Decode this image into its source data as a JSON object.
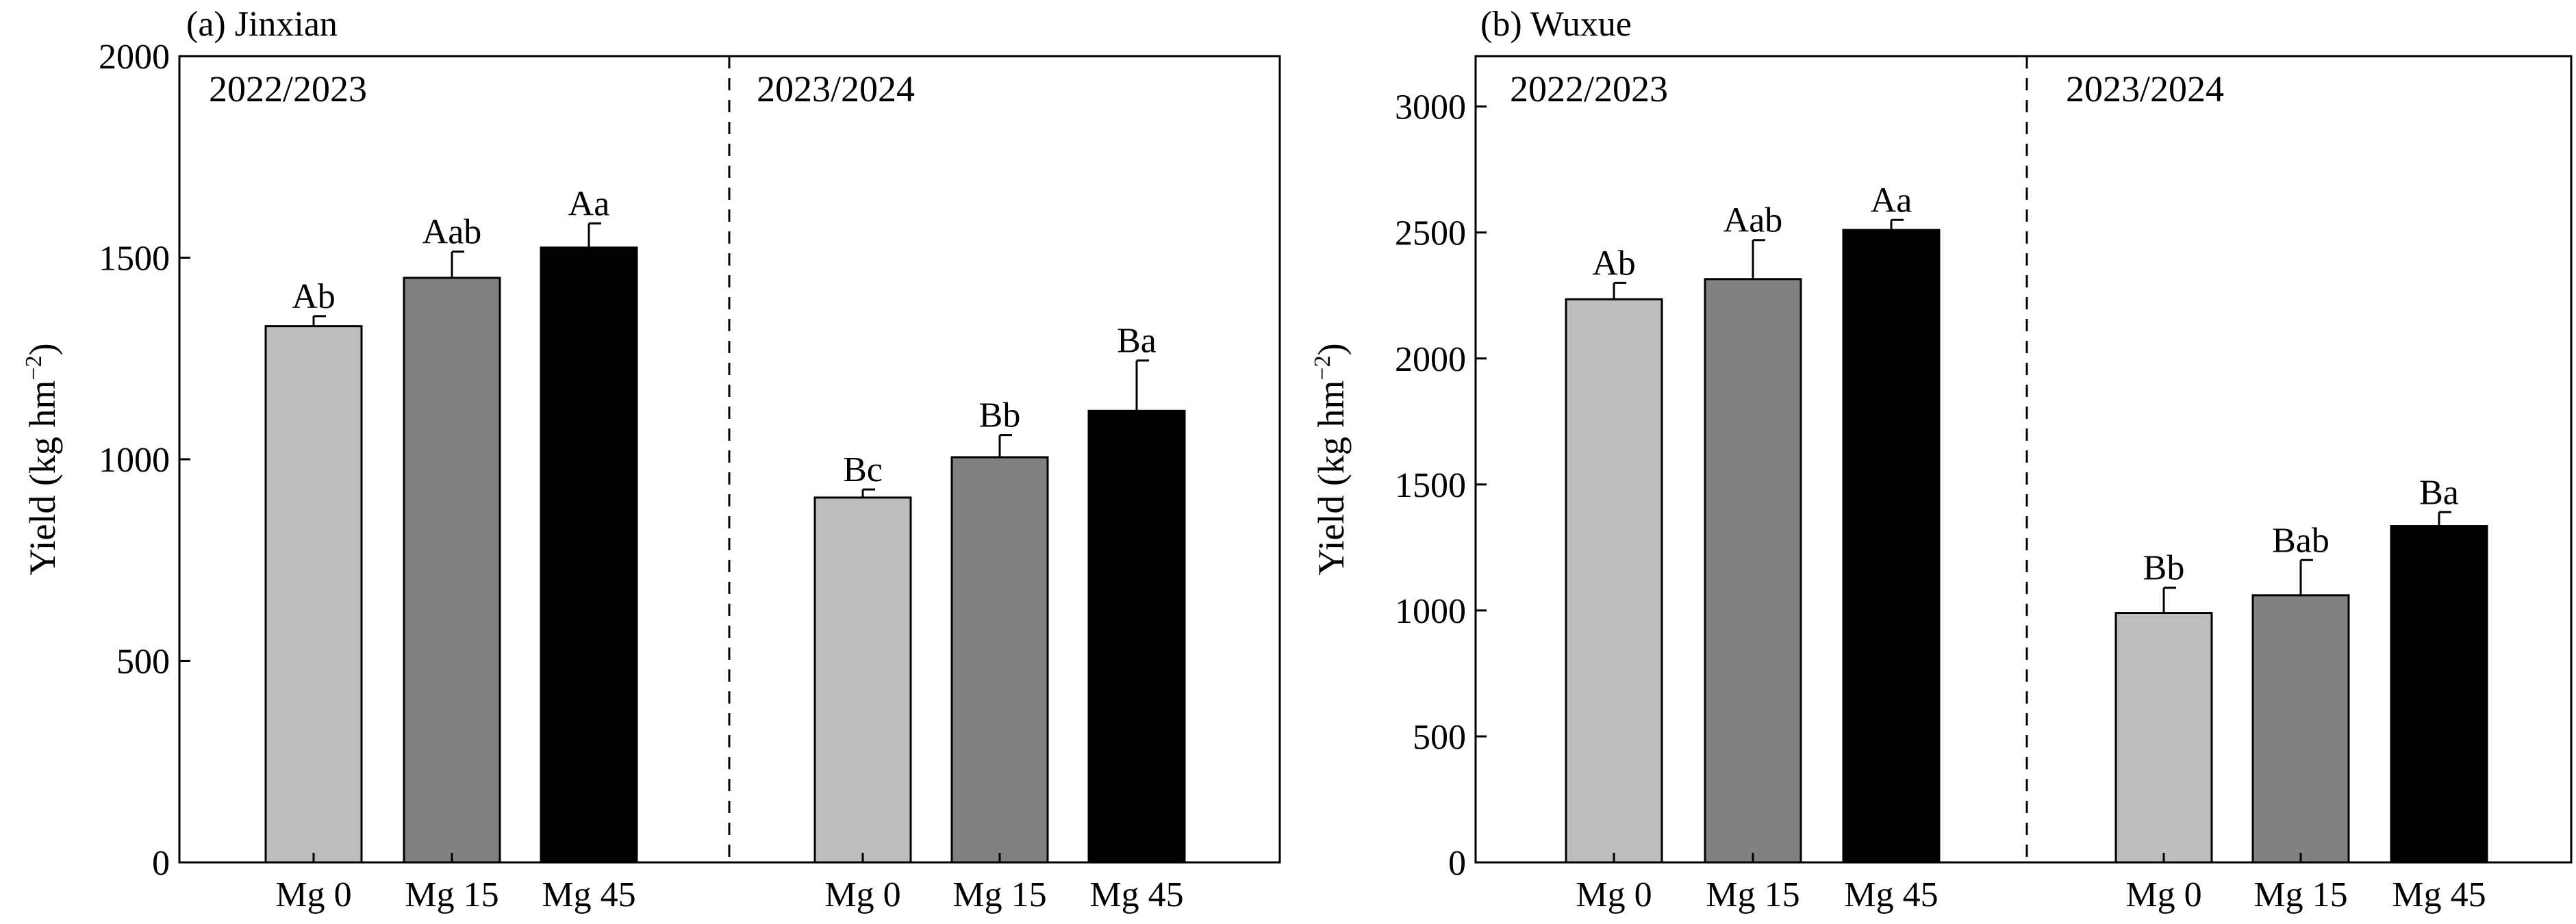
{
  "chart_data": [
    {
      "type": "bar",
      "title": "(a) Jinxian",
      "ylabel": "Yield (kg hm",
      "ylabel_sup": "−2",
      "ylabel_close": ")",
      "ylim": [
        0,
        2000
      ],
      "yticks": [
        0,
        500,
        1000,
        1500,
        2000
      ],
      "categories": [
        "Mg 0",
        "Mg 15",
        "Mg 45"
      ],
      "bar_colors": [
        "#bebcbf",
        "#828083",
        "#000000"
      ],
      "groups": [
        {
          "label": "2022/2023",
          "values": [
            1330,
            1450,
            1525
          ],
          "errors": [
            25,
            65,
            60
          ],
          "letters": [
            "Ab",
            "Aab",
            "Aa"
          ]
        },
        {
          "label": "2023/2024",
          "values": [
            905,
            1005,
            1120
          ],
          "errors": [
            20,
            55,
            125
          ],
          "letters": [
            "Bc",
            "Bb",
            "Ba"
          ]
        }
      ]
    },
    {
      "type": "bar",
      "title": "(b) Wuxue",
      "ylabel": "Yield (kg hm",
      "ylabel_sup": "−2",
      "ylabel_close": ")",
      "ylim": [
        0,
        3200
      ],
      "yticks": [
        0,
        500,
        1000,
        1500,
        2000,
        2500,
        3000
      ],
      "categories": [
        "Mg 0",
        "Mg 15",
        "Mg 45"
      ],
      "bar_colors": [
        "#bebcbf",
        "#828083",
        "#000000"
      ],
      "groups": [
        {
          "label": "2022/2023",
          "values": [
            2235,
            2315,
            2510
          ],
          "errors": [
            65,
            155,
            40
          ],
          "letters": [
            "Ab",
            "Aab",
            "Aa"
          ]
        },
        {
          "label": "2023/2024",
          "values": [
            990,
            1060,
            1335
          ],
          "errors": [
            100,
            140,
            55
          ],
          "letters": [
            "Bb",
            "Bab",
            "Ba"
          ]
        }
      ]
    }
  ]
}
